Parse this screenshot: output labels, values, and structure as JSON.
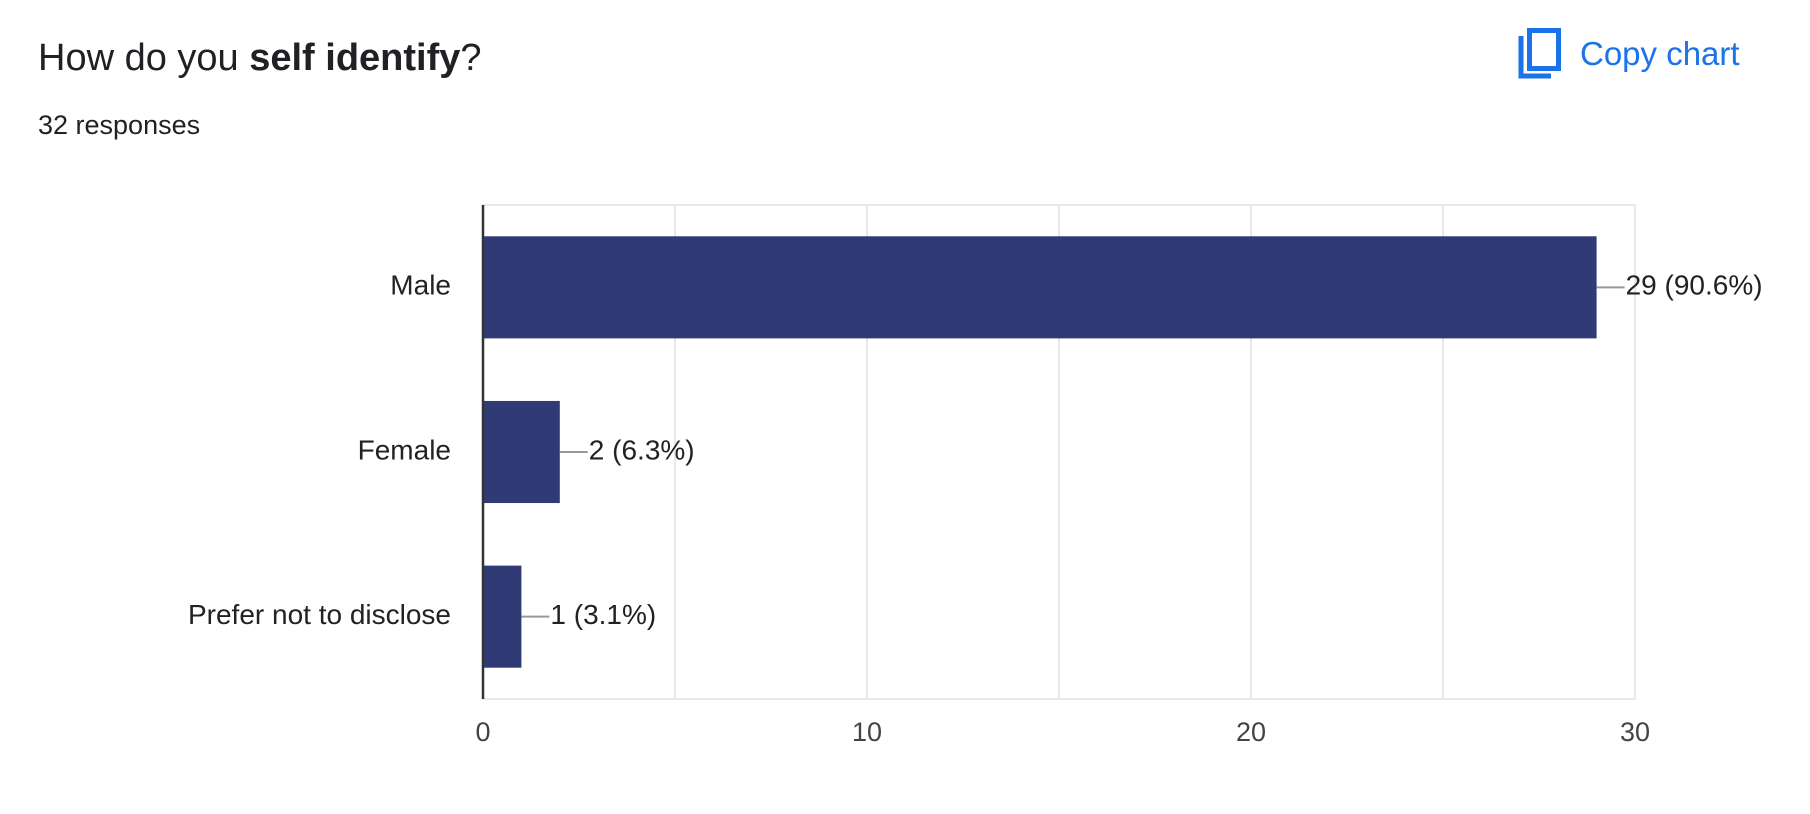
{
  "header": {
    "title_prefix": "How do you ",
    "title_bold": "self identify",
    "title_suffix": "?",
    "responses": "32 responses",
    "copy_label": "Copy chart"
  },
  "colors": {
    "bar": "#303a75",
    "accent": "#1a73e8",
    "grid": "#e8e8e8",
    "axis": "#333333",
    "leader": "#999999"
  },
  "icons": {
    "copy": "copy-icon"
  },
  "chart_data": {
    "type": "bar",
    "orientation": "horizontal",
    "categories": [
      "Male",
      "Female",
      "Prefer not to disclose"
    ],
    "values": [
      29,
      2,
      1
    ],
    "value_labels": [
      "29 (90.6%)",
      "2 (6.3%)",
      "1 (3.1%)"
    ],
    "xlim": [
      0,
      30
    ],
    "xticks": [
      0,
      10,
      20,
      30
    ],
    "xtick_labels": [
      "0",
      "10",
      "20",
      "30"
    ],
    "grid": true,
    "legend": "none"
  }
}
